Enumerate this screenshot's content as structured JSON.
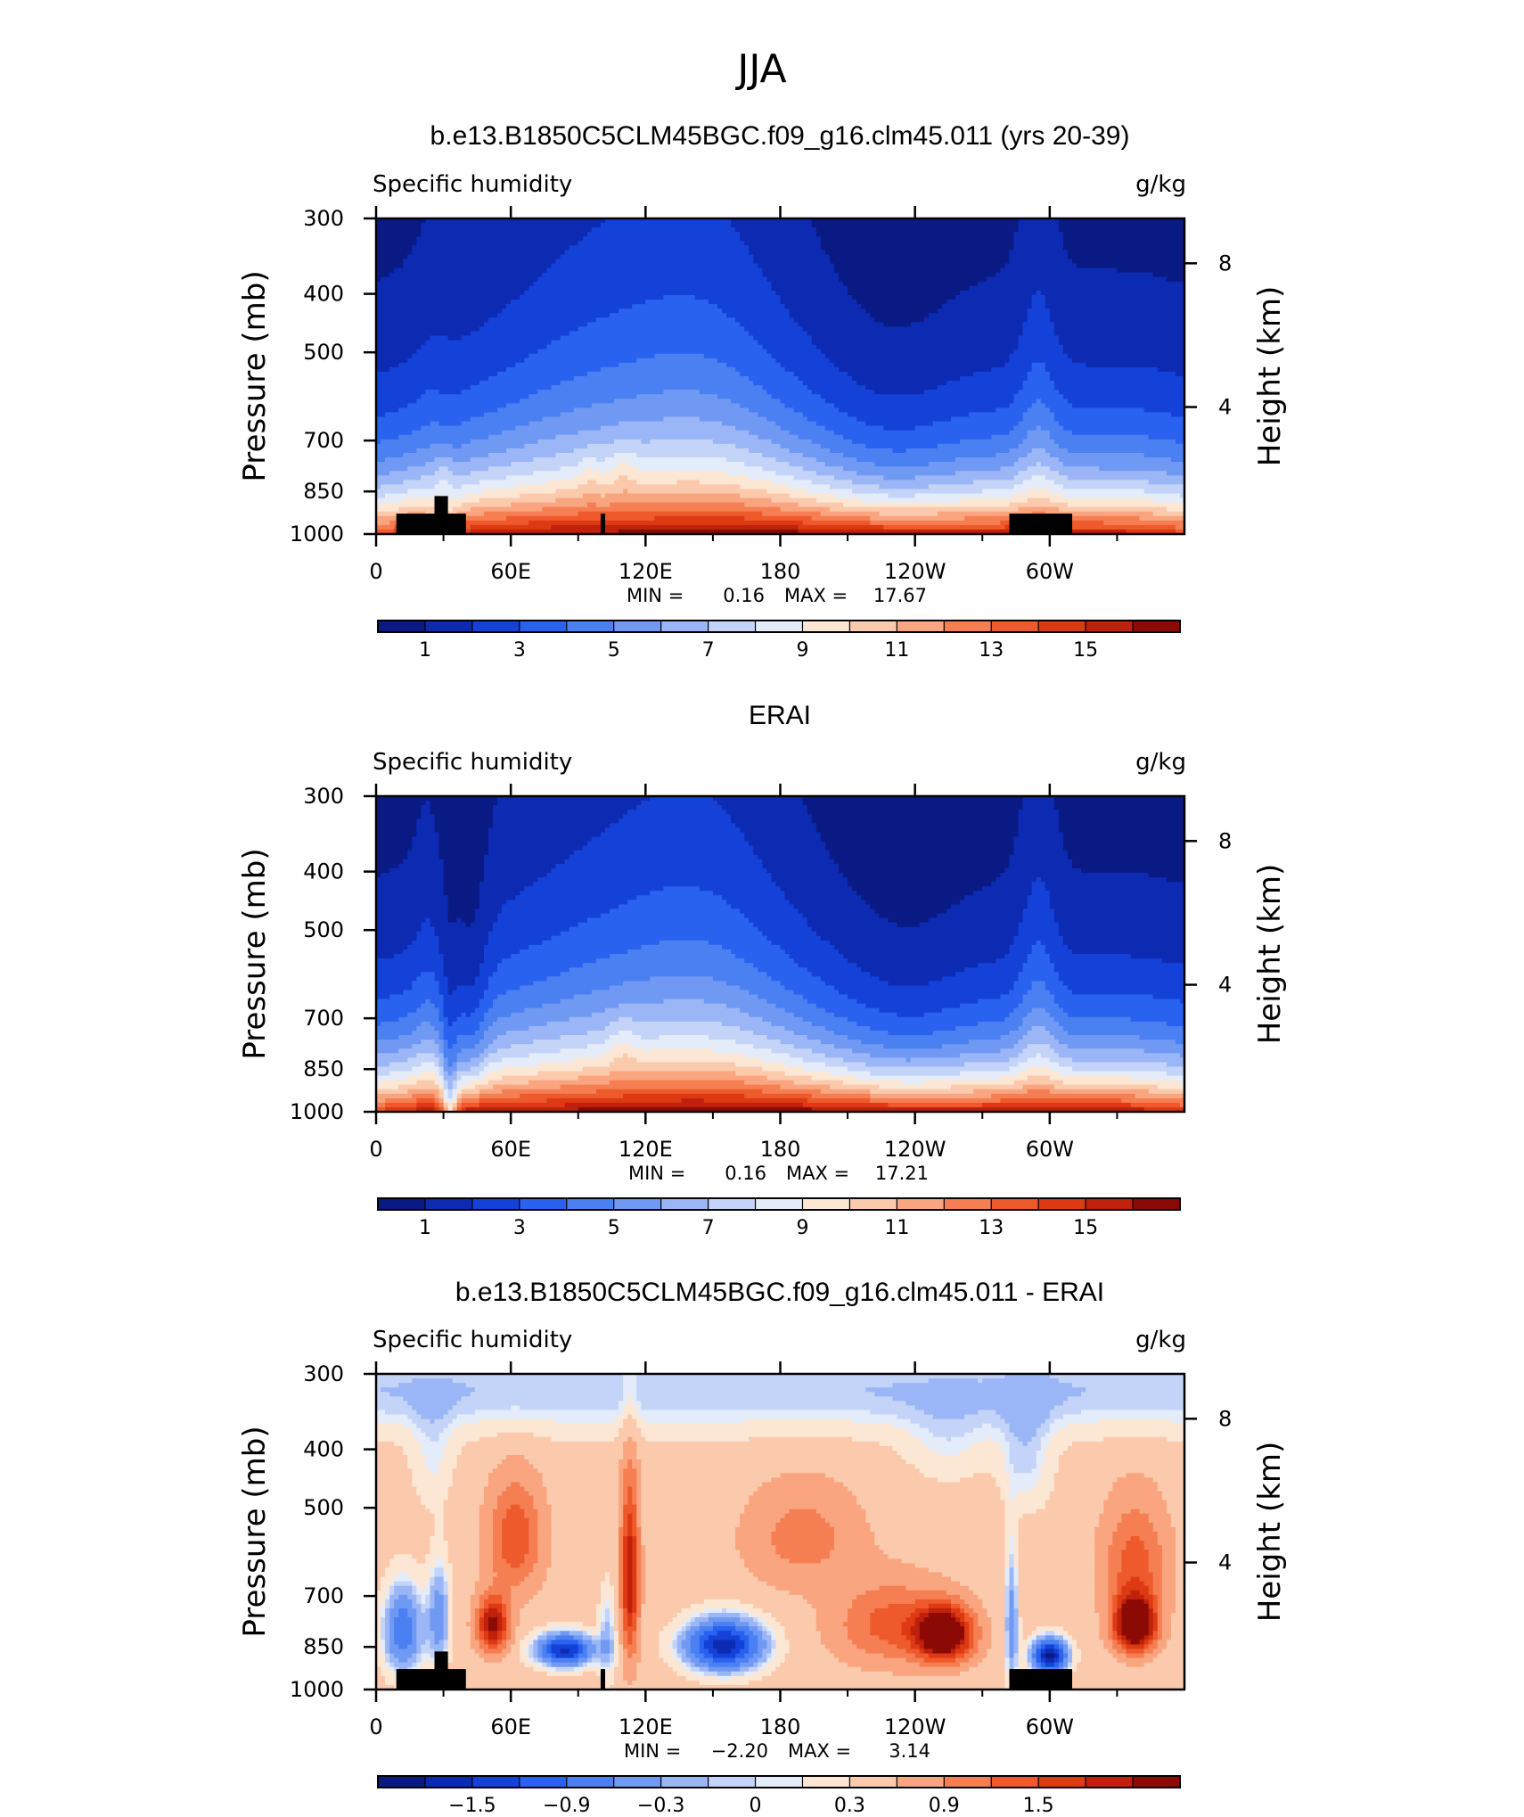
{
  "title": "JJA",
  "panels": [
    {
      "id": "model",
      "title": "b.e13.B1850C5CLM45BGC.f09_g16.clm45.011 (yrs 20-39)",
      "variable": "Specific humidity",
      "units": "g/kg",
      "min_label": "MIN =",
      "min_value": "0.16",
      "max_label": "MAX =",
      "max_value": "17.67",
      "colorbar_labels": [
        "1",
        "3",
        "5",
        "7",
        "9",
        "11",
        "13",
        "15"
      ],
      "show_topography": true
    },
    {
      "id": "obs",
      "title": "ERAI",
      "variable": "Specific humidity",
      "units": "g/kg",
      "min_label": "MIN =",
      "min_value": "0.16",
      "max_label": "MAX =",
      "max_value": "17.21",
      "colorbar_labels": [
        "1",
        "3",
        "5",
        "7",
        "9",
        "11",
        "13",
        "15"
      ],
      "show_topography": false
    },
    {
      "id": "diff",
      "title": "b.e13.B1850C5CLM45BGC.f09_g16.clm45.011 - ERAI",
      "variable": "Specific humidity",
      "units": "g/kg",
      "min_label": "MIN =",
      "min_value": "−2.20",
      "max_label": "MAX =",
      "max_value": "3.14",
      "colorbar_labels": [
        "−1.5",
        "−0.9",
        "−0.3",
        "0",
        "0.3",
        "0.9",
        "1.5"
      ],
      "show_topography": true
    }
  ],
  "axes": {
    "ylabel_left": "Pressure (mb)",
    "ylabel_right": "Height (km)",
    "pressure_ticks": [
      "300",
      "400",
      "500",
      "700",
      "850",
      "1000"
    ],
    "height_ticks": [
      "8",
      "4"
    ],
    "x_ticks": [
      "0",
      "60E",
      "120E",
      "180",
      "120W",
      "60W"
    ]
  },
  "chart_data": [
    {
      "type": "heatmap",
      "title": "b.e13.B1850C5CLM45BGC.f09_g16.clm45.011 (yrs 20-39)",
      "xlabel": "Longitude",
      "ylabel": "Pressure (mb)",
      "xlim": [
        0,
        360
      ],
      "ylim": [
        1000,
        300
      ],
      "yscale": "log",
      "series": [
        {
          "name": "pressure_1000",
          "x": [
            0,
            30,
            60,
            90,
            120,
            150,
            180,
            210,
            240,
            270,
            300,
            330,
            360
          ],
          "values": [
            12,
            15,
            16.5,
            17,
            16.5,
            16.5,
            16.5,
            16,
            15.5,
            15,
            14,
            16,
            14
          ]
        },
        {
          "name": "pressure_850",
          "x": [
            0,
            30,
            60,
            90,
            120,
            150,
            180,
            210,
            240,
            270,
            300,
            330,
            360
          ],
          "values": [
            9,
            11,
            11,
            11,
            11.5,
            10.5,
            10,
            9.5,
            9.5,
            10,
            11,
            10,
            9
          ]
        },
        {
          "name": "pressure_700",
          "x": [
            0,
            30,
            60,
            90,
            120,
            150,
            180,
            210,
            240,
            270,
            300,
            330,
            360
          ],
          "values": [
            5,
            5.5,
            6.5,
            7,
            7,
            6.5,
            6,
            5,
            4.5,
            4.5,
            6.5,
            6,
            5
          ]
        },
        {
          "name": "pressure_500",
          "x": [
            0,
            30,
            60,
            90,
            120,
            150,
            180,
            210,
            240,
            270,
            300,
            330,
            360
          ],
          "values": [
            2,
            1.8,
            3,
            3.5,
            3.5,
            3,
            2.5,
            2,
            1.8,
            1.8,
            3,
            2.5,
            2
          ]
        },
        {
          "name": "pressure_300",
          "x": [
            0,
            30,
            60,
            90,
            120,
            150,
            180,
            210,
            240,
            270,
            300,
            330,
            360
          ],
          "values": [
            0.5,
            0.5,
            1,
            1,
            1,
            0.8,
            0.6,
            0.5,
            0.4,
            0.4,
            0.6,
            0.5,
            0.5
          ]
        }
      ],
      "levels": [
        0,
        1,
        2,
        3,
        4,
        5,
        6,
        7,
        8,
        9,
        10,
        11,
        12,
        13,
        14,
        15,
        16
      ],
      "colorbar_ticks": [
        1,
        3,
        5,
        7,
        9,
        11,
        13,
        15
      ],
      "min": 0.16,
      "max": 17.67,
      "units": "g/kg"
    },
    {
      "type": "heatmap",
      "title": "ERAI",
      "xlabel": "Longitude",
      "ylabel": "Pressure (mb)",
      "xlim": [
        0,
        360
      ],
      "ylim": [
        1000,
        300
      ],
      "yscale": "log",
      "series": [
        {
          "name": "pressure_1000",
          "x": [
            0,
            30,
            60,
            90,
            120,
            150,
            180,
            210,
            240,
            270,
            300,
            330,
            360
          ],
          "values": [
            12,
            10,
            16.5,
            17,
            16.5,
            16.5,
            16.5,
            16,
            15,
            15,
            14,
            16,
            14
          ]
        },
        {
          "name": "pressure_850",
          "x": [
            0,
            30,
            60,
            90,
            120,
            150,
            180,
            210,
            240,
            270,
            300,
            330,
            360
          ],
          "values": [
            9,
            8,
            10.5,
            11,
            11,
            10.5,
            10,
            9.5,
            9,
            9,
            10.5,
            9.5,
            9
          ]
        },
        {
          "name": "pressure_700",
          "x": [
            0,
            30,
            60,
            90,
            120,
            150,
            180,
            210,
            240,
            270,
            300,
            330,
            360
          ],
          "values": [
            5,
            3.5,
            5,
            6,
            6.5,
            6,
            5,
            4.5,
            4,
            4,
            6,
            5,
            4.5
          ]
        },
        {
          "name": "pressure_500",
          "x": [
            0,
            30,
            60,
            90,
            120,
            150,
            180,
            210,
            240,
            270,
            300,
            330,
            360
          ],
          "values": [
            1.5,
            1,
            2,
            3,
            3,
            2.5,
            2,
            1.5,
            1,
            1,
            2.5,
            1.5,
            1.5
          ]
        },
        {
          "name": "pressure_300",
          "x": [
            0,
            30,
            60,
            90,
            120,
            150,
            180,
            210,
            240,
            270,
            300,
            330,
            360
          ],
          "values": [
            0.4,
            0.3,
            0.8,
            1,
            1,
            0.8,
            0.5,
            0.4,
            0.3,
            0.3,
            0.5,
            0.4,
            0.4
          ]
        }
      ],
      "levels": [
        0,
        1,
        2,
        3,
        4,
        5,
        6,
        7,
        8,
        9,
        10,
        11,
        12,
        13,
        14,
        15,
        16
      ],
      "colorbar_ticks": [
        1,
        3,
        5,
        7,
        9,
        11,
        13,
        15
      ],
      "min": 0.16,
      "max": 17.21,
      "units": "g/kg"
    },
    {
      "type": "heatmap",
      "title": "b.e13.B1850C5CLM45BGC.f09_g16.clm45.011 - ERAI",
      "xlabel": "Longitude",
      "ylabel": "Pressure (mb)",
      "xlim": [
        0,
        360
      ],
      "ylim": [
        1000,
        300
      ],
      "yscale": "log",
      "series": [
        {
          "name": "pressure_850",
          "x": [
            0,
            30,
            60,
            90,
            120,
            150,
            180,
            210,
            240,
            270,
            300,
            330,
            360
          ],
          "values": [
            -0.6,
            -0.9,
            0.9,
            -1.5,
            0.6,
            -1.5,
            0.3,
            0.9,
            2.5,
            0.6,
            -1.8,
            -0.6,
            0.6
          ]
        },
        {
          "name": "pressure_700",
          "x": [
            0,
            30,
            60,
            90,
            120,
            150,
            180,
            210,
            240,
            270,
            300,
            330,
            360
          ],
          "values": [
            -0.9,
            -1.2,
            1.8,
            0.3,
            0.9,
            -0.3,
            0.6,
            0.9,
            1.5,
            0.6,
            -0.3,
            0.6,
            2.5
          ]
        },
        {
          "name": "pressure_500",
          "x": [
            0,
            30,
            60,
            90,
            120,
            150,
            180,
            210,
            240,
            270,
            300,
            330,
            360
          ],
          "values": [
            -0.3,
            -0.6,
            1.2,
            0.3,
            1.5,
            0.6,
            0.9,
            0.6,
            0.3,
            0.3,
            0.6,
            0.6,
            1.2
          ]
        },
        {
          "name": "pressure_300",
          "x": [
            0,
            30,
            60,
            90,
            120,
            150,
            180,
            210,
            240,
            270,
            300,
            330,
            360
          ],
          "values": [
            -0.2,
            -0.2,
            0.2,
            0.1,
            0.2,
            0,
            0.1,
            0,
            -0.1,
            -0.2,
            0,
            -0.2,
            0.2
          ]
        }
      ],
      "levels": [
        -1.8,
        -1.5,
        -1.2,
        -0.9,
        -0.6,
        -0.3,
        -0.1,
        0,
        0.1,
        0.3,
        0.6,
        0.9,
        1.2,
        1.5,
        1.8,
        2.1
      ],
      "colorbar_ticks": [
        -1.5,
        -0.9,
        -0.3,
        0,
        0.3,
        0.9,
        1.5
      ],
      "min": -2.2,
      "max": 3.14,
      "units": "g/kg"
    }
  ],
  "colors": {
    "colormap": [
      "#0a1a85",
      "#0d2ab2",
      "#1442d8",
      "#2962ee",
      "#4a80f1",
      "#7099f3",
      "#9bb6f6",
      "#c4d4f8",
      "#e4ecfa",
      "#fce7d4",
      "#fbc9ab",
      "#f9a57f",
      "#f57f52",
      "#ee5a2c",
      "#dd3a13",
      "#bf210c",
      "#8c0a05"
    ],
    "topography": "#000000",
    "axis": "#000000"
  }
}
